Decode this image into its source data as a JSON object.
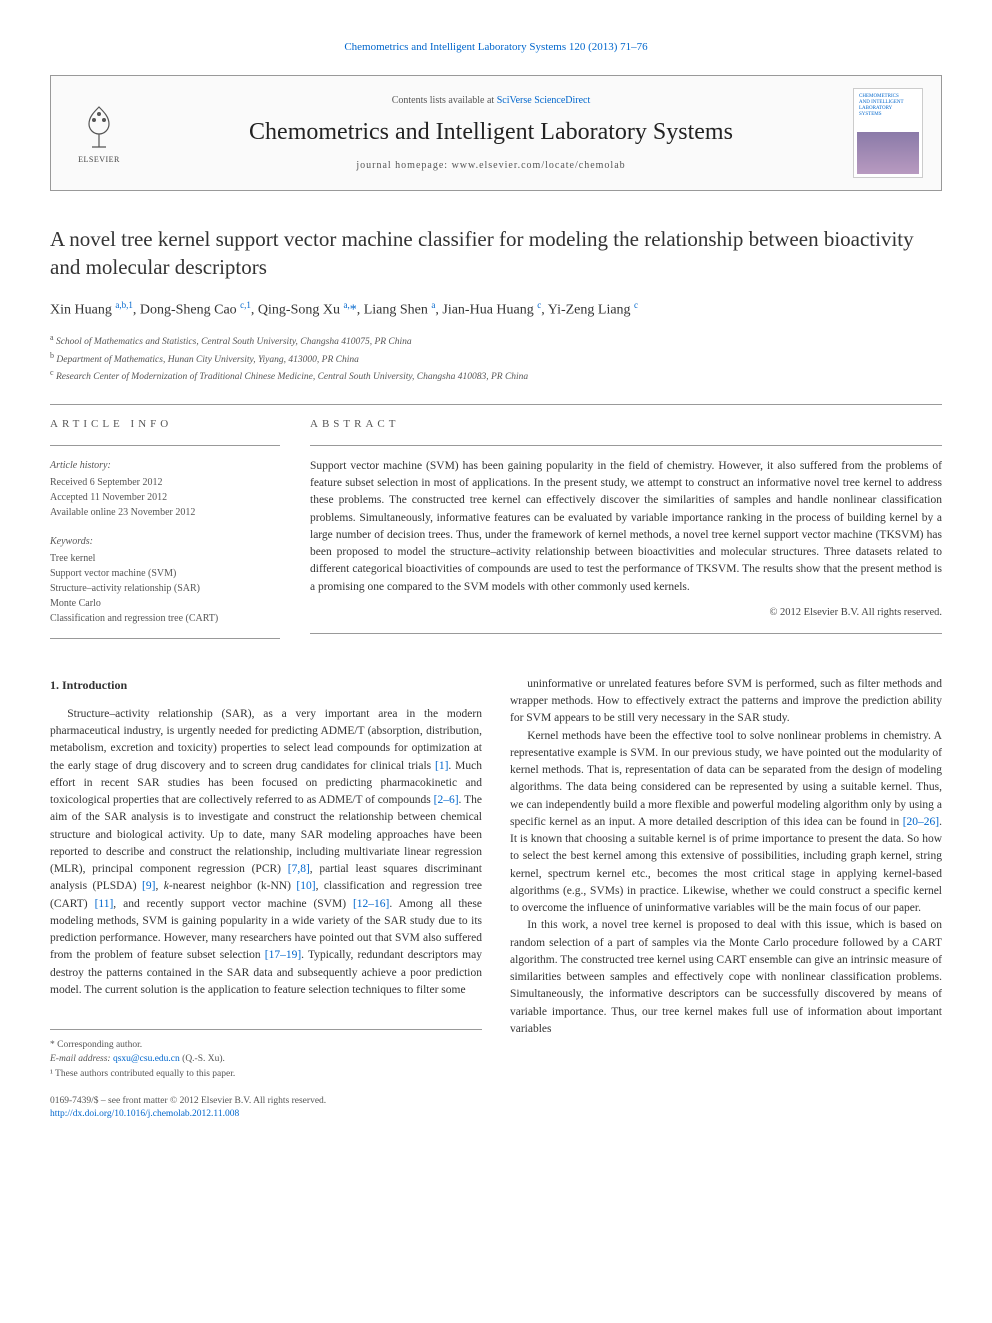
{
  "top_citation": "Chemometrics and Intelligent Laboratory Systems 120 (2013) 71–76",
  "header": {
    "contents_prefix": "Contents lists available at ",
    "contents_link": "SciVerse ScienceDirect",
    "journal_title": "Chemometrics and Intelligent Laboratory Systems",
    "homepage_prefix": "journal homepage: ",
    "homepage_url": "www.elsevier.com/locate/chemolab",
    "elsevier_label": "ELSEVIER",
    "cover_lines": [
      "CHEMOMETRICS",
      "AND INTELLIGENT",
      "LABORATORY",
      "SYSTEMS"
    ]
  },
  "article_title": "A novel tree kernel support vector machine classifier for modeling the relationship between bioactivity and molecular descriptors",
  "authors_html": "Xin Huang <sup>a,b,1</sup>, Dong-Sheng Cao <sup>c,1</sup>, Qing-Song Xu <sup>a,</sup><span class='author-star'>*</span>, Liang Shen <sup>a</sup>, Jian-Hua Huang <sup>c</sup>, Yi-Zeng Liang <sup>c</sup>",
  "affiliations": [
    {
      "sup": "a",
      "text": "School of Mathematics and Statistics, Central South University, Changsha 410075, PR China"
    },
    {
      "sup": "b",
      "text": "Department of Mathematics, Hunan City University, Yiyang, 413000, PR China"
    },
    {
      "sup": "c",
      "text": "Research Center of Modernization of Traditional Chinese Medicine, Central South University, Changsha 410083, PR China"
    }
  ],
  "article_info": {
    "heading": "article info",
    "history_title": "Article history:",
    "history_lines": [
      "Received 6 September 2012",
      "Accepted 11 November 2012",
      "Available online 23 November 2012"
    ],
    "keywords_title": "Keywords:",
    "keywords": [
      "Tree kernel",
      "Support vector machine (SVM)",
      "Structure–activity relationship (SAR)",
      "Monte Carlo",
      "Classification and regression tree (CART)"
    ]
  },
  "abstract": {
    "heading": "abstract",
    "text": "Support vector machine (SVM) has been gaining popularity in the field of chemistry. However, it also suffered from the problems of feature subset selection in most of applications. In the present study, we attempt to construct an informative novel tree kernel to address these problems. The constructed tree kernel can effectively discover the similarities of samples and handle nonlinear classification problems. Simultaneously, informative features can be evaluated by variable importance ranking in the process of building kernel by a large number of decision trees. Thus, under the framework of kernel methods, a novel tree kernel support vector machine (TKSVM) has been proposed to model the structure–activity relationship between bioactivities and molecular structures. Three datasets related to different categorical bioactivities of compounds are used to test the performance of TKSVM. The results show that the present method is a promising one compared to the SVM models with other commonly used kernels.",
    "copyright": "© 2012 Elsevier B.V. All rights reserved."
  },
  "body": {
    "intro_heading": "1. Introduction",
    "col1_p1": "Structure–activity relationship (SAR), as a very important area in the modern pharmaceutical industry, is urgently needed for predicting ADME/T (absorption, distribution, metabolism, excretion and toxicity) properties to select lead compounds for optimization at the early stage of drug discovery and to screen drug candidates for clinical trials <span class='ref-link'>[1]</span>. Much effort in recent SAR studies has been focused on predicting pharmacokinetic and toxicological properties that are collectively referred to as ADME/T of compounds <span class='ref-link'>[2–6]</span>. The aim of the SAR analysis is to investigate and construct the relationship between chemical structure and biological activity. Up to date, many SAR modeling approaches have been reported to describe and construct the relationship, including multivariate linear regression (MLR), principal component regression (PCR) <span class='ref-link'>[7,8]</span>, partial least squares discriminant analysis (PLSDA) <span class='ref-link'>[9]</span>, <i>k</i>-nearest neighbor (k-NN) <span class='ref-link'>[10]</span>, classification and regression tree (CART) <span class='ref-link'>[11]</span>, and recently support vector machine (SVM) <span class='ref-link'>[12–16]</span>. Among all these modeling methods, SVM is gaining popularity in a wide variety of the SAR study due to its prediction performance. However, many researchers have pointed out that SVM also suffered from the problem of feature subset selection <span class='ref-link'>[17–19]</span>. Typically, redundant descriptors may destroy the patterns contained in the SAR data and subsequently achieve a poor prediction model. The current solution is the application to feature selection techniques to filter some",
    "col2_p1": "uninformative or unrelated features before SVM is performed, such as filter methods and wrapper methods. How to effectively extract the patterns and improve the prediction ability for SVM appears to be still very necessary in the SAR study.",
    "col2_p2": "Kernel methods have been the effective tool to solve nonlinear problems in chemistry. A representative example is SVM. In our previous study, we have pointed out the modularity of kernel methods. That is, representation of data can be separated from the design of modeling algorithms. The data being considered can be represented by using a suitable kernel. Thus, we can independently build a more flexible and powerful modeling algorithm only by using a specific kernel as an input. A more detailed description of this idea can be found in <span class='ref-link'>[20–26]</span>. It is known that choosing a suitable kernel is of prime importance to present the data. So how to select the best kernel among this extensive of possibilities, including graph kernel, string kernel, spectrum kernel etc., becomes the most critical stage in applying kernel-based algorithms (e.g., SVMs) in practice. Likewise, whether we could construct a specific kernel to overcome the influence of uninformative variables will be the main focus of our paper.",
    "col2_p3": "In this work, a novel tree kernel is proposed to deal with this issue, which is based on random selection of a part of samples via the Monte Carlo procedure followed by a CART algorithm. The constructed tree kernel using CART ensemble can give an intrinsic measure of similarities between samples and effectively cope with nonlinear classification problems. Simultaneously, the informative descriptors can be successfully discovered by means of variable importance. Thus, our tree kernel makes full use of information about important variables"
  },
  "footer": {
    "corr_label": "* Corresponding author.",
    "email_label": "E-mail address: ",
    "email": "qsxu@csu.edu.cn",
    "email_suffix": " (Q.-S. Xu).",
    "equal_contrib": "¹ These authors contributed equally to this paper.",
    "issn_line": "0169-7439/$ – see front matter © 2012 Elsevier B.V. All rights reserved.",
    "doi": "http://dx.doi.org/10.1016/j.chemolab.2012.11.008"
  },
  "colors": {
    "link": "#0066cc",
    "text": "#333333",
    "muted": "#555555",
    "border": "#999999"
  }
}
